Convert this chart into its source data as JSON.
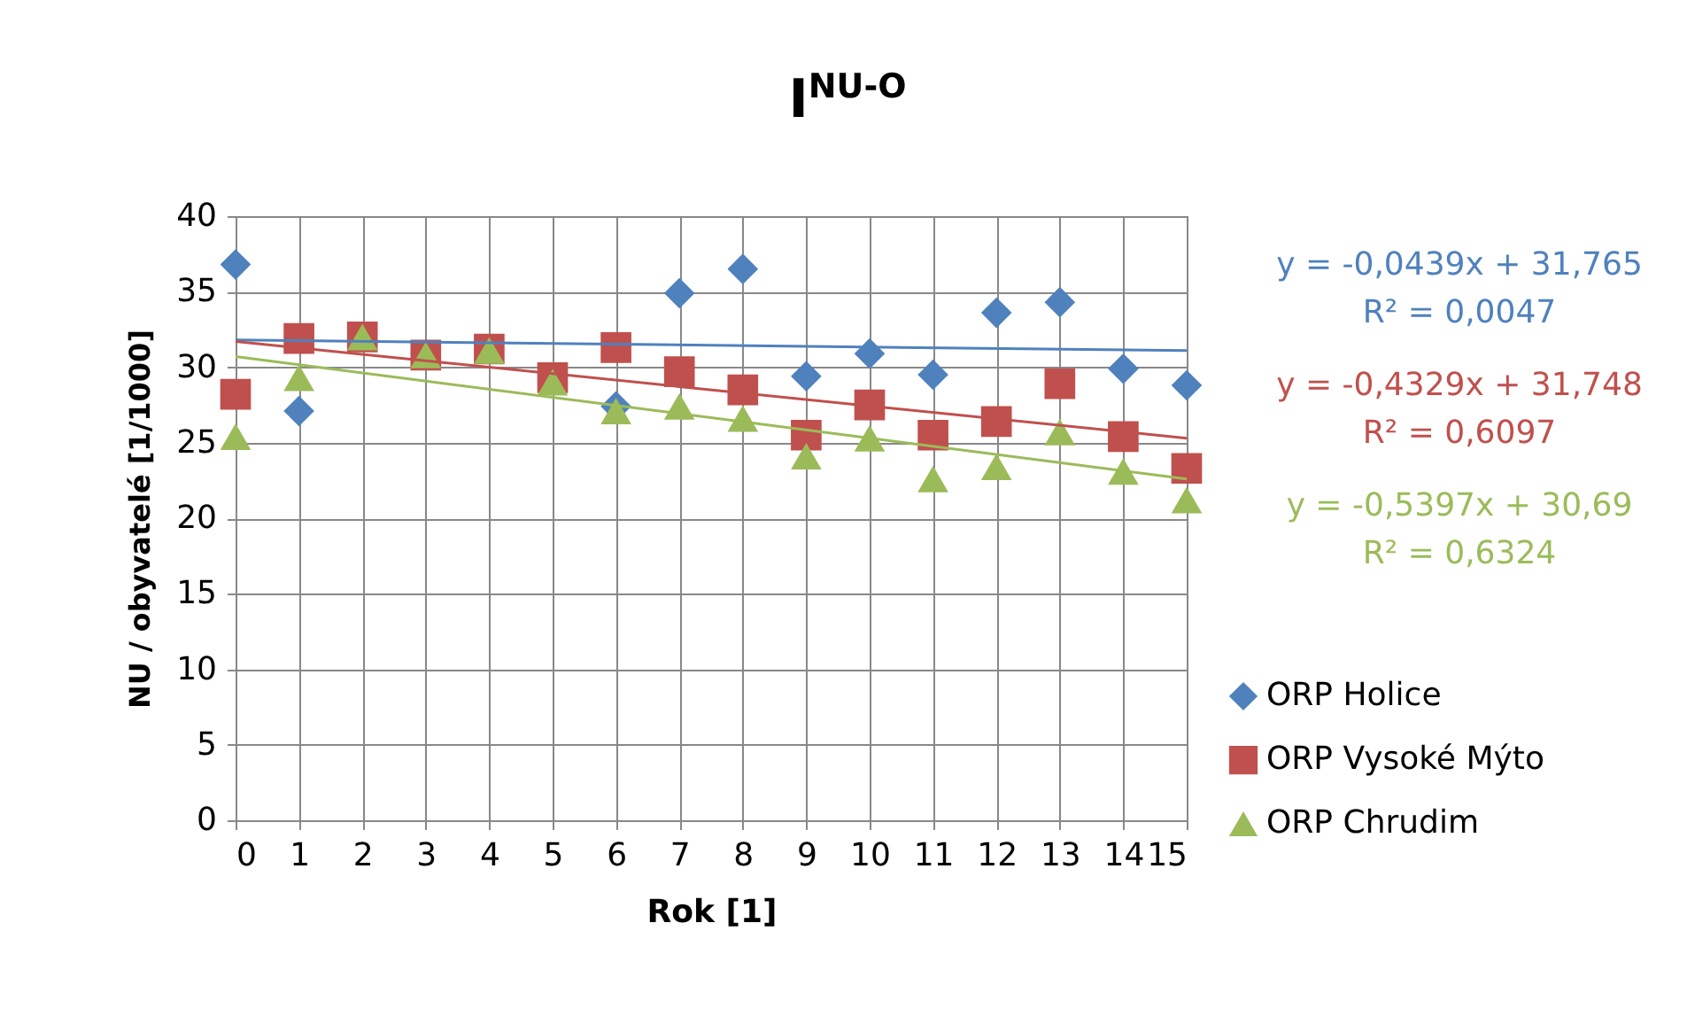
{
  "chart_data": {
    "type": "scatter",
    "title": "I$^{NU-O}$",
    "xlabel": "Rok [1]",
    "ylabel": "NU / obyvatelé [1/1000]",
    "xlim": [
      0,
      15
    ],
    "xticks": [
      0,
      1,
      2,
      3,
      4,
      5,
      6,
      7,
      8,
      9,
      10,
      11,
      12,
      13,
      14,
      15
    ],
    "ylim": [
      0,
      40
    ],
    "yticks": [
      0,
      5,
      10,
      15,
      20,
      25,
      30,
      35,
      40
    ],
    "grid": true,
    "legend": "right",
    "annotations": [
      "y = -0,0439x + 31,765",
      "R² = 0,0047",
      "y = -0,4329x + 31,748",
      "R² = 0,6097",
      "y = -0,5397x + 30,69",
      "R² = 0,6324"
    ],
    "series": [
      {
        "name": "ORP Holice",
        "type": "scatter",
        "marker": "diamond",
        "color": "#4f81bd",
        "x": [
          0,
          1,
          2,
          3,
          4,
          5,
          6,
          7,
          8,
          9,
          10,
          11,
          12,
          13,
          14,
          15
        ],
        "values": [
          36.8,
          27.1,
          null,
          null,
          null,
          null,
          27.4,
          34.9,
          36.5,
          29.4,
          30.9,
          29.5,
          33.6,
          34.3,
          29.9,
          28.8
        ]
      },
      {
        "name": "ORP Vysoké Mýto",
        "type": "scatter",
        "marker": "square",
        "color": "#c0504d",
        "x": [
          0,
          1,
          2,
          3,
          4,
          5,
          6,
          7,
          8,
          9,
          10,
          11,
          12,
          13,
          14,
          15
        ],
        "values": [
          28.2,
          31.9,
          32.0,
          30.8,
          31.2,
          29.3,
          31.3,
          29.7,
          28.5,
          25.5,
          27.5,
          25.5,
          26.4,
          28.9,
          25.4,
          23.3
        ]
      },
      {
        "name": "ORP Chrudim",
        "type": "scatter",
        "marker": "triangle",
        "color": "#9bbb59",
        "x": [
          0,
          1,
          2,
          3,
          4,
          5,
          6,
          7,
          8,
          9,
          10,
          11,
          12,
          13,
          14,
          15
        ],
        "values": [
          25.4,
          29.3,
          32.0,
          30.8,
          31.1,
          29.0,
          27.1,
          27.4,
          26.6,
          24.1,
          25.3,
          22.6,
          23.4,
          25.7,
          23.1,
          21.2
        ]
      },
      {
        "type": "line",
        "color": "#4f81bd",
        "x": [
          0,
          15
        ],
        "values": [
          31.8,
          31.1
        ]
      },
      {
        "type": "line",
        "color": "#c0504d",
        "x": [
          0,
          15
        ],
        "values": [
          31.7,
          25.3
        ]
      },
      {
        "type": "line",
        "color": "#9bbb59",
        "x": [
          0,
          15
        ],
        "values": [
          30.7,
          22.6
        ]
      }
    ]
  }
}
